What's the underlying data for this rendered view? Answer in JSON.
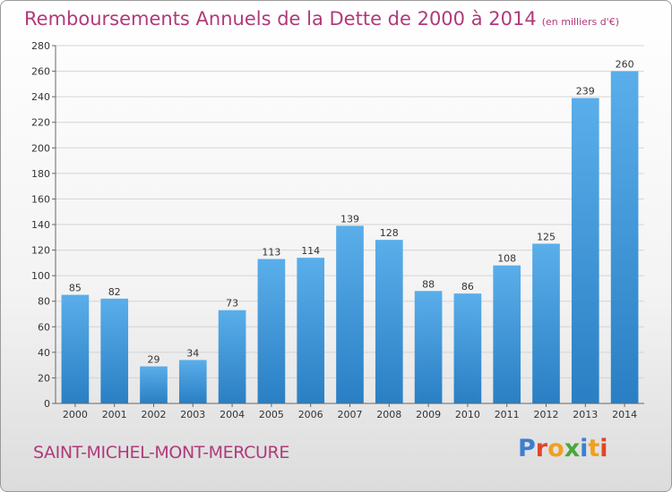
{
  "title": "Remboursements Annuels de la Dette de 2000 à 2014",
  "subtitle": "(en milliers d'€)",
  "commune": "SAINT-MICHEL-MONT-MERCURE",
  "logo": {
    "text": "Proxiti",
    "letter_colors": [
      "#3a7fd0",
      "#e0452b",
      "#f0a020",
      "#4aa83a",
      "#3a7fd0",
      "#f0a020",
      "#e0452b"
    ]
  },
  "colors": {
    "bar_top": "#5aaeea",
    "bar_bottom": "#2a7fc4",
    "title": "#b03a7a"
  },
  "chart_data": {
    "type": "bar",
    "categories": [
      "2000",
      "2001",
      "2002",
      "2003",
      "2004",
      "2005",
      "2006",
      "2007",
      "2008",
      "2009",
      "2010",
      "2011",
      "2012",
      "2013",
      "2014"
    ],
    "values": [
      85,
      82,
      29,
      34,
      73,
      113,
      114,
      139,
      128,
      88,
      86,
      108,
      125,
      239,
      260
    ],
    "ylim": [
      0,
      280
    ],
    "yticks": [
      0,
      20,
      40,
      60,
      80,
      100,
      120,
      140,
      160,
      180,
      200,
      220,
      240,
      260,
      280
    ],
    "grid": true,
    "data_labels": true
  }
}
